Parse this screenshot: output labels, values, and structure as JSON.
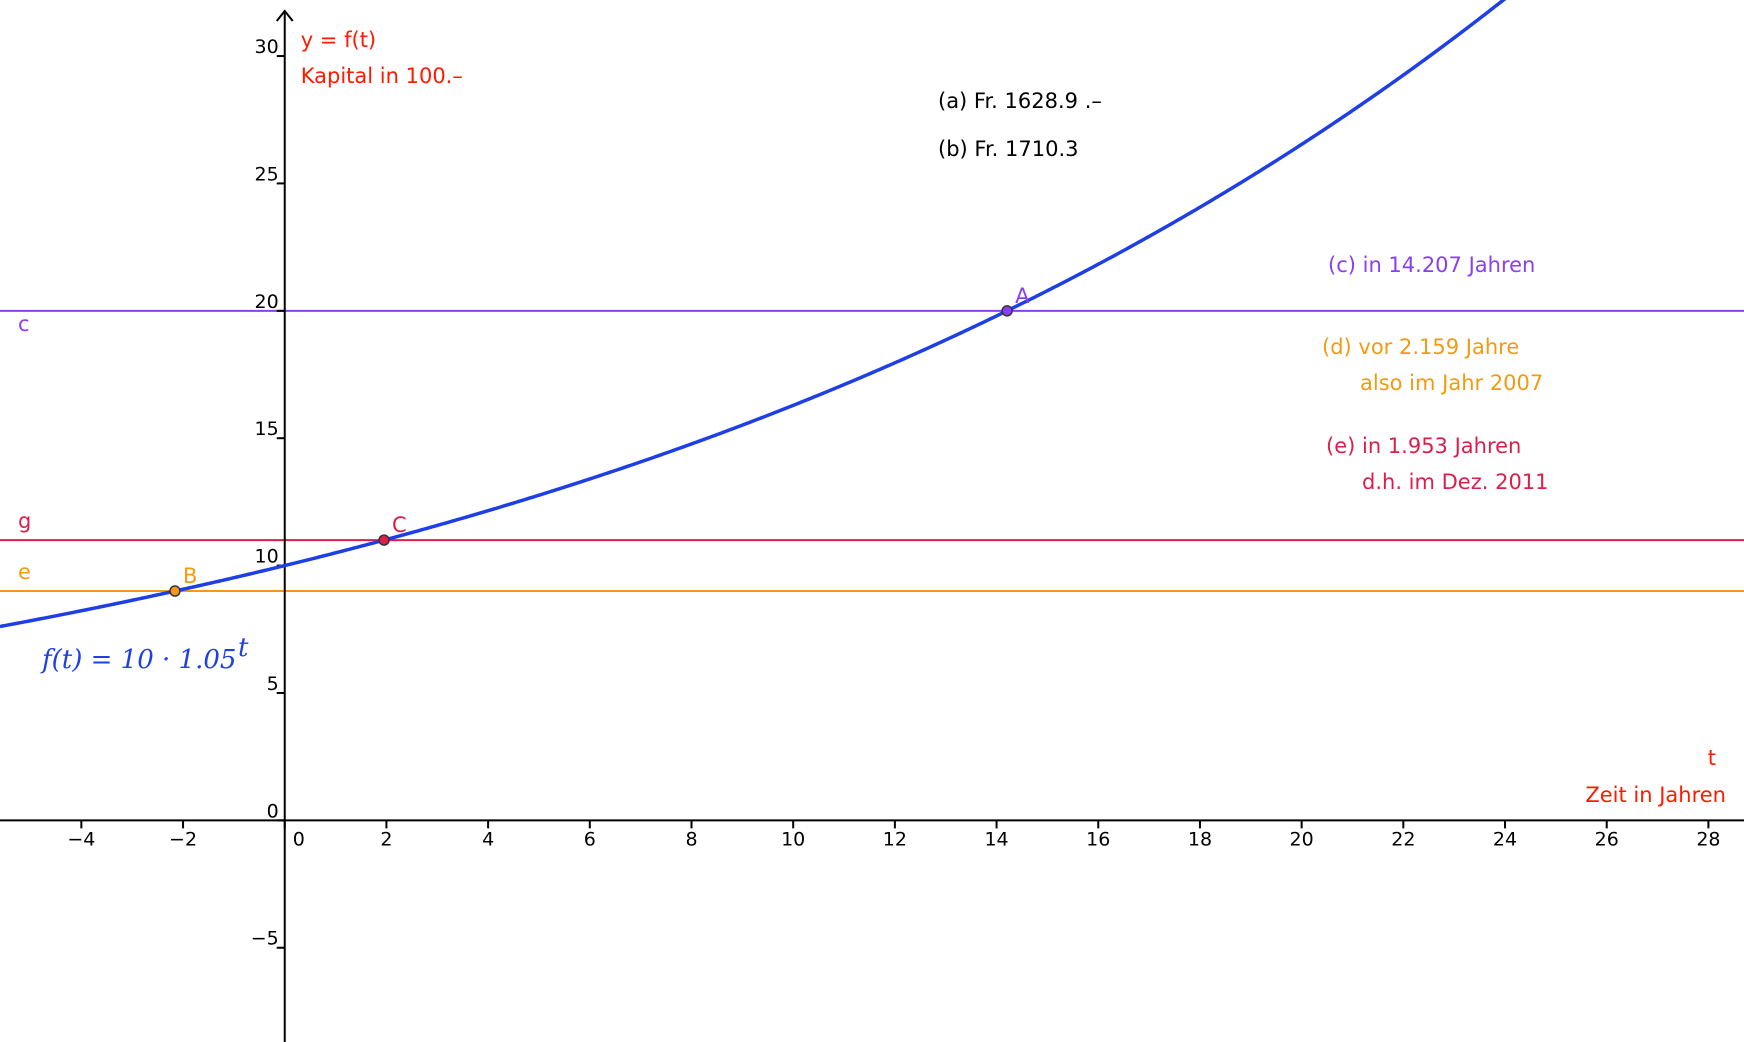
{
  "chart_data": {
    "type": "line",
    "xlim": [
      -5.6,
      28.7
    ],
    "ylim": [
      -8.7,
      32.2
    ],
    "x_ticks": [
      -4,
      -2,
      0,
      2,
      4,
      6,
      8,
      10,
      12,
      14,
      16,
      18,
      20,
      22,
      24,
      26,
      28
    ],
    "x_tick_labels": [
      "−4",
      "−2",
      "0",
      "2",
      "4",
      "6",
      "8",
      "10",
      "12",
      "14",
      "16",
      "18",
      "20",
      "22",
      "24",
      "26",
      "28"
    ],
    "y_ticks": [
      -5,
      0,
      5,
      10,
      15,
      20,
      25,
      30
    ],
    "y_tick_labels": [
      "−5",
      "0",
      "5",
      "10",
      "15",
      "20",
      "25",
      "30"
    ],
    "grid": false,
    "function": {
      "name": "f",
      "base": 10,
      "growth": 1.05,
      "label": "f(t) = 10 · 1.05",
      "label_exponent": "t",
      "color": "#1f3fe6"
    },
    "horizontal_lines": [
      {
        "name": "c",
        "y": 20,
        "color": "#8a3ff5"
      },
      {
        "name": "g",
        "y": 11,
        "color": "#dc1f4a"
      },
      {
        "name": "e",
        "y": 9,
        "color": "#f39a13"
      }
    ],
    "points": [
      {
        "name": "A",
        "x": 14.207,
        "y": 20,
        "color": "#8a3ff5"
      },
      {
        "name": "B",
        "x": -2.159,
        "y": 9,
        "color": "#f39a13"
      },
      {
        "name": "C",
        "x": 1.953,
        "y": 11,
        "color": "#dc1f4a"
      }
    ],
    "ylabel_lines": [
      "y = f(t)",
      "Kapital in 100.–"
    ],
    "xlabel_lines": [
      "t",
      "Zeit in Jahren"
    ],
    "axis_label_color": "#ff1a00",
    "annotations": [
      {
        "id": "a",
        "lines": [
          "(a) Fr. 1628.9 .–"
        ],
        "color": "#000000"
      },
      {
        "id": "b",
        "lines": [
          "(b) Fr. 1710.3"
        ],
        "color": "#000000"
      },
      {
        "id": "c",
        "lines": [
          "(c) in 14.207 Jahren"
        ],
        "color": "#8a3ff5"
      },
      {
        "id": "d",
        "lines": [
          "(d) vor 2.159 Jahre",
          "also im Jahr 2007"
        ],
        "color": "#f39a13"
      },
      {
        "id": "e",
        "lines": [
          "(e) in 1.953 Jahren",
          "d.h. im Dez. 2011"
        ],
        "color": "#dc1f4a"
      }
    ]
  }
}
